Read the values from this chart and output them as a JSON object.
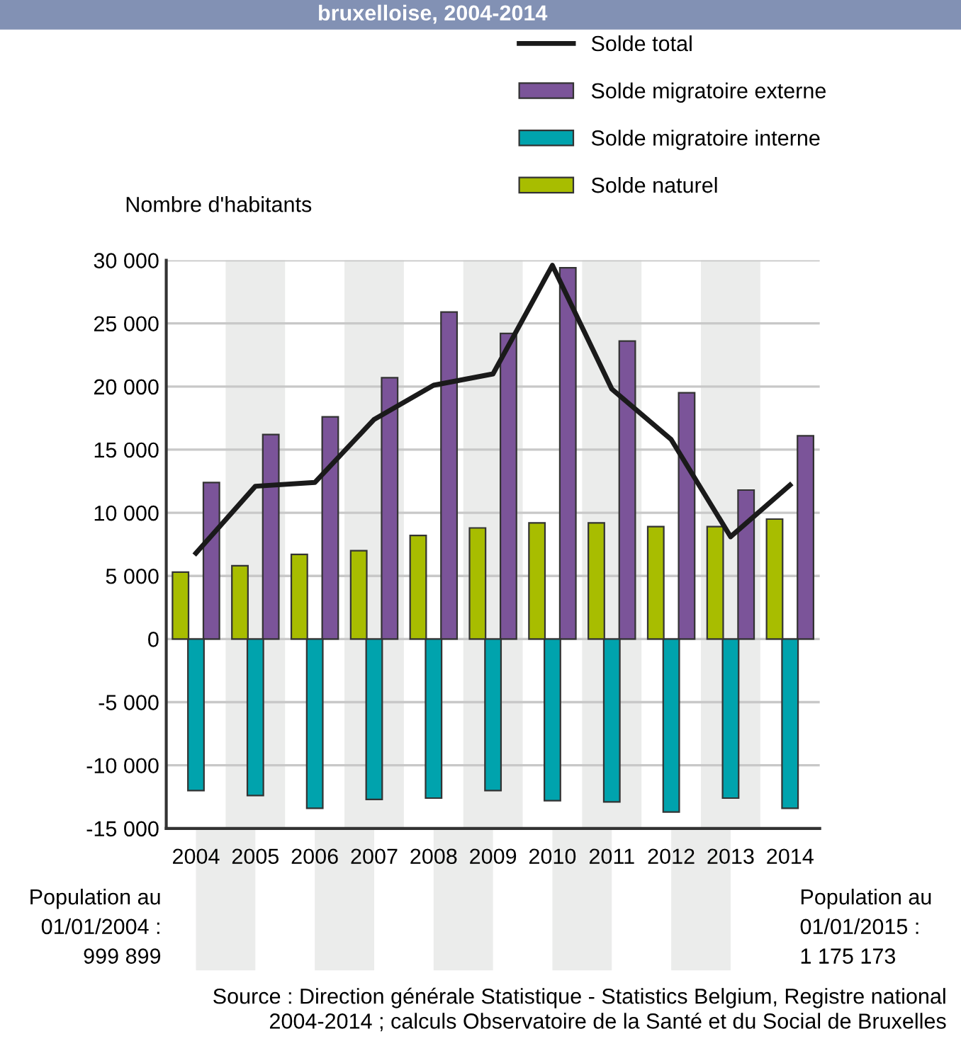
{
  "chart_data": {
    "type": "bar",
    "title": "bruxelloise, 2004-2014",
    "ylabel": "Nombre d'habitants",
    "categories": [
      "2004",
      "2005",
      "2006",
      "2007",
      "2008",
      "2009",
      "2010",
      "2011",
      "2012",
      "2013",
      "2014"
    ],
    "series": [
      {
        "name": "Solde total",
        "type": "line",
        "color": "#1a1a1a",
        "values": [
          6800,
          12100,
          12400,
          17400,
          20100,
          21000,
          29600,
          19800,
          15800,
          8100,
          12200
        ]
      },
      {
        "name": "Solde migratoire externe",
        "color": "#7b5499",
        "values": [
          12400,
          16200,
          17600,
          20700,
          25900,
          24200,
          29400,
          23600,
          19500,
          11800,
          16100
        ]
      },
      {
        "name": "Solde migratoire interne",
        "color": "#00a3ad",
        "values": [
          -12000,
          -12400,
          -13400,
          -12700,
          -12600,
          -12000,
          -12800,
          -12900,
          -13700,
          -12600,
          -13400
        ]
      },
      {
        "name": "Solde naturel",
        "color": "#a8bd00",
        "values": [
          5300,
          5800,
          6700,
          7000,
          8200,
          8800,
          9200,
          9200,
          8900,
          8900,
          9500
        ]
      }
    ],
    "ylim": [
      -15000,
      30000
    ],
    "yticks": [
      {
        "value": -15000,
        "label": "-15 000"
      },
      {
        "value": -10000,
        "label": "-10 000"
      },
      {
        "value": -5000,
        "label": "-5 000"
      },
      0,
      {
        "value": 5000,
        "label": "5 000"
      },
      {
        "value": 10000,
        "label": "10 000"
      },
      {
        "value": 15000,
        "label": "15 000"
      },
      {
        "value": 20000,
        "label": "20 000"
      },
      {
        "value": 25000,
        "label": "25 000"
      },
      {
        "value": 30000,
        "label": "30 000"
      }
    ],
    "grid": "y",
    "legend": "top right",
    "annotations": [
      "Population au\n01/01/2004 :\n999 899",
      "Population au\n01/01/2015 :\n1 175 173",
      "Source : Direction générale Statistique - Statistics Belgium, Registre national\n2004-2014 ; calculs Observatoire de la Santé et du Social de Bruxelles"
    ]
  }
}
